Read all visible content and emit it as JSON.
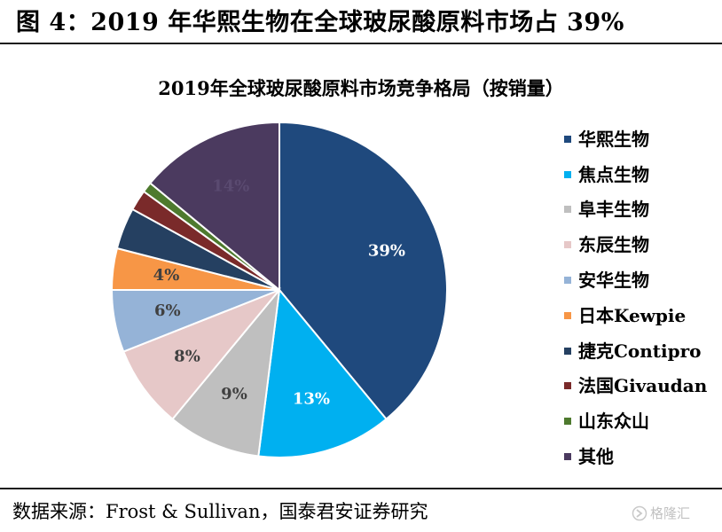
{
  "figure": {
    "title": "图 4：2019 年华熙生物在全球玻尿酸原料市场占 39%",
    "source": "数据来源：Frost & Sullivan，国泰君安证券研究",
    "watermark": "格隆汇"
  },
  "chart_data": {
    "type": "pie",
    "title": "2019年全球玻尿酸原料市场竞争格局（按销量）",
    "slices": [
      {
        "name": "华熙生物",
        "value": 39,
        "label": "39%",
        "color": "#1f497d",
        "label_color": "#ffffff"
      },
      {
        "name": "焦点生物",
        "value": 13,
        "label": "13%",
        "color": "#00b0f0",
        "label_color": "#ffffff"
      },
      {
        "name": "阜丰生物",
        "value": 9,
        "label": "9%",
        "color": "#bfbfbf",
        "label_color": "#404040"
      },
      {
        "name": "东辰生物",
        "value": 8,
        "label": "8%",
        "color": "#e6c8c8",
        "label_color": "#404040"
      },
      {
        "name": "安华生物",
        "value": 6,
        "label": "6%",
        "color": "#95b3d7",
        "label_color": "#404040"
      },
      {
        "name": "日本Kewpie",
        "value": 4,
        "label": "4%",
        "color": "#f79646",
        "label_color": "#404040"
      },
      {
        "name": "捷克Contipro",
        "value": 4,
        "label": "",
        "color": "#254061",
        "label_color": "#ffffff"
      },
      {
        "name": "法国Givaudan",
        "value": 2,
        "label": "",
        "color": "#7a2a2a",
        "label_color": "#ffffff"
      },
      {
        "name": "山东众山",
        "value": 1,
        "label": "",
        "color": "#4e7a2e",
        "label_color": "#ffffff"
      },
      {
        "name": "其他",
        "value": 14,
        "label": "14%",
        "color": "#4b3a5f",
        "label_color": "#5a4a70"
      }
    ],
    "start_angle": "12 o'clock",
    "direction": "clockwise",
    "legend_position": "right"
  }
}
